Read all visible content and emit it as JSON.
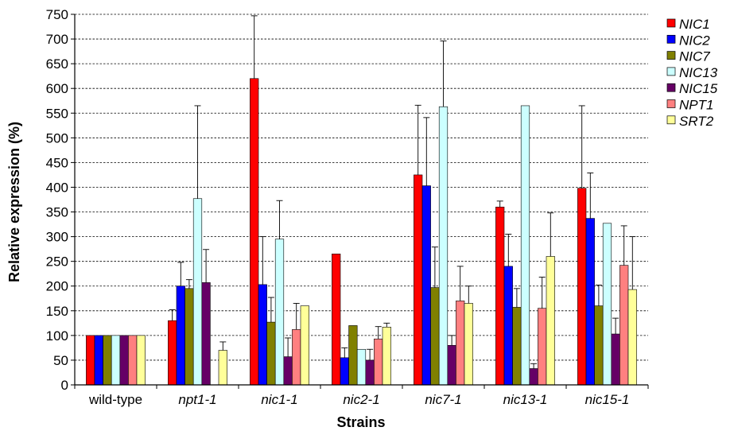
{
  "chart_data": {
    "type": "bar",
    "title": "",
    "xlabel": "Strains",
    "ylabel": "Relative expression (%)",
    "ylim": [
      0,
      750
    ],
    "ytick_step": 50,
    "grid": "horizontal-dashed",
    "legend_position": "right",
    "categories": [
      "wild-type",
      "npt1-1",
      "nic1-1",
      "nic2-1",
      "nic7-1",
      "nic13-1",
      "nic15-1"
    ],
    "italic_categories": [
      "npt1-1",
      "nic1-1",
      "nic2-1",
      "nic7-1",
      "nic13-1",
      "nic15-1"
    ],
    "series": [
      {
        "name": "NIC1",
        "color": "#ff0000",
        "values": [
          100,
          130,
          620,
          265,
          425,
          360,
          398
        ],
        "errors": [
          0,
          22,
          127,
          0,
          141,
          12,
          167
        ]
      },
      {
        "name": "NIC2",
        "color": "#0000ff",
        "values": [
          100,
          200,
          203,
          55,
          403,
          240,
          337
        ],
        "errors": [
          0,
          48,
          97,
          20,
          138,
          65,
          92
        ]
      },
      {
        "name": "NIC7",
        "color": "#808000",
        "values": [
          100,
          195,
          127,
          120,
          197,
          157,
          160
        ],
        "errors": [
          0,
          18,
          50,
          0,
          82,
          38,
          42
        ]
      },
      {
        "name": "NIC13",
        "color": "#ccffff",
        "values": [
          100,
          377,
          295,
          72,
          563,
          565,
          327
        ],
        "errors": [
          0,
          188,
          78,
          0,
          133,
          0,
          0
        ]
      },
      {
        "name": "NIC15",
        "color": "#660066",
        "values": [
          100,
          207,
          57,
          50,
          80,
          33,
          103
        ],
        "errors": [
          0,
          67,
          38,
          22,
          20,
          10,
          32
        ]
      },
      {
        "name": "NPT1",
        "color": "#ff8080",
        "values": [
          100,
          0,
          112,
          93,
          170,
          155,
          242
        ],
        "errors": [
          0,
          0,
          53,
          25,
          70,
          63,
          80
        ]
      },
      {
        "name": "SRT2",
        "color": "#ffff99",
        "values": [
          100,
          70,
          160,
          117,
          165,
          260,
          193
        ],
        "errors": [
          0,
          17,
          0,
          8,
          35,
          88,
          107
        ]
      }
    ]
  }
}
